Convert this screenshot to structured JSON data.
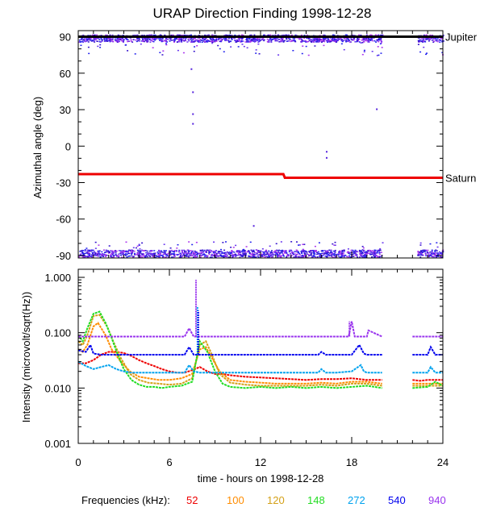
{
  "chart_data": [
    {
      "type": "scatter",
      "panel": "direction",
      "title": "URAP Direction Finding  1998-12-28",
      "xlabel": "",
      "ylabel": "Azimuthal angle (deg)",
      "xlim": [
        0,
        24
      ],
      "ylim": [
        -92,
        95
      ],
      "yticks": [
        90,
        60,
        30,
        0,
        -30,
        -60,
        -90
      ],
      "data_gap_hours": [
        20,
        22
      ],
      "reference_lines": [
        {
          "name": "Jupiter",
          "color": "#000000",
          "x": [
            0,
            24
          ],
          "y": [
            90,
            90
          ]
        },
        {
          "name": "Saturn",
          "color": "#ee0000",
          "x": [
            0,
            13.5,
            13.6,
            24
          ],
          "y": [
            -23,
            -23,
            -26,
            -26
          ]
        }
      ],
      "scatter_bands": [
        {
          "center": 89,
          "spread": 3,
          "outliers_low": 75
        },
        {
          "center": -88,
          "spread": 3,
          "outliers_high": -78
        }
      ],
      "isolated_points": [
        [
          7.4,
          64
        ],
        [
          7.5,
          45
        ],
        [
          7.5,
          27
        ],
        [
          7.5,
          19
        ],
        [
          16.3,
          -4
        ],
        [
          16.3,
          -9
        ],
        [
          19.6,
          31
        ],
        [
          11.5,
          -65
        ]
      ]
    },
    {
      "type": "line",
      "panel": "intensity",
      "xlabel": "time - hours on 1998-12-28",
      "ylabel": "Intensity (microvolt/sqrt(Hz))",
      "xlim": [
        0,
        24
      ],
      "ylim": [
        0.001,
        1.4
      ],
      "yscale": "log",
      "xticks": [
        0,
        6,
        12,
        18,
        24
      ],
      "yticks": [
        "0.001",
        "0.010",
        "0.100",
        "1.000"
      ],
      "ytick_values": [
        0.001,
        0.01,
        0.1,
        1
      ],
      "data_gap_hours": [
        20,
        22
      ],
      "legend_title": "Frequencies (kHz):",
      "series": [
        {
          "name": "52",
          "color": "#ee0000",
          "x": [
            0,
            0.5,
            1,
            1.5,
            2,
            2.5,
            3,
            3.5,
            4,
            4.5,
            5,
            5.5,
            6,
            6.5,
            7,
            7.5,
            8,
            8.5,
            9,
            9.5,
            10,
            11,
            12,
            13,
            14,
            15,
            16,
            17,
            18,
            19,
            20,
            22,
            22.5,
            23,
            24
          ],
          "y": [
            0.028,
            0.028,
            0.032,
            0.04,
            0.045,
            0.045,
            0.043,
            0.038,
            0.032,
            0.028,
            0.025,
            0.022,
            0.02,
            0.019,
            0.019,
            0.021,
            0.024,
            0.02,
            0.018,
            0.018,
            0.017,
            0.016,
            0.0155,
            0.015,
            0.0145,
            0.014,
            0.0145,
            0.0145,
            0.015,
            0.014,
            0.014,
            0.014,
            0.0135,
            0.014,
            0.014
          ]
        },
        {
          "name": "100",
          "color": "#ff8c00",
          "x": [
            0,
            0.3,
            0.6,
            1,
            1.3,
            1.8,
            2.2,
            2.8,
            3.4,
            4,
            4.6,
            5.3,
            6,
            6.8,
            7.5,
            8,
            8.4,
            8.8,
            9.3,
            10,
            11,
            12,
            13,
            14,
            15,
            16,
            17,
            18,
            19,
            20,
            22,
            23,
            24
          ],
          "y": [
            0.05,
            0.045,
            0.06,
            0.13,
            0.15,
            0.09,
            0.05,
            0.03,
            0.02,
            0.016,
            0.015,
            0.014,
            0.014,
            0.015,
            0.018,
            0.05,
            0.055,
            0.035,
            0.02,
            0.014,
            0.013,
            0.0125,
            0.012,
            0.012,
            0.012,
            0.0125,
            0.012,
            0.013,
            0.013,
            0.012,
            0.012,
            0.012,
            0.012
          ]
        },
        {
          "name": "120",
          "color": "#d4a017",
          "x": [
            0,
            0.3,
            0.6,
            1,
            1.4,
            1.9,
            2.3,
            2.8,
            3.4,
            4,
            4.6,
            5.3,
            6,
            6.8,
            7.5,
            8,
            8.4,
            8.8,
            9.3,
            10,
            11,
            12,
            13,
            14,
            15,
            16,
            17,
            18,
            19,
            20,
            22,
            23,
            24
          ],
          "y": [
            0.07,
            0.06,
            0.09,
            0.2,
            0.21,
            0.13,
            0.07,
            0.035,
            0.018,
            0.014,
            0.0125,
            0.012,
            0.0115,
            0.012,
            0.015,
            0.06,
            0.07,
            0.04,
            0.018,
            0.0125,
            0.0115,
            0.011,
            0.011,
            0.011,
            0.011,
            0.0115,
            0.011,
            0.012,
            0.012,
            0.011,
            0.011,
            0.011,
            0.011
          ]
        },
        {
          "name": "148",
          "color": "#22dd22",
          "x": [
            0,
            0.3,
            0.6,
            1,
            1.4,
            1.8,
            2.2,
            2.6,
            3,
            3.5,
            4,
            4.5,
            5,
            5.5,
            6,
            6.8,
            7.5,
            8,
            8.5,
            9,
            9.5,
            10,
            11,
            12,
            13,
            14,
            15,
            16,
            17,
            18,
            19,
            20,
            22,
            23,
            23.5,
            24
          ],
          "y": [
            0.09,
            0.07,
            0.12,
            0.22,
            0.24,
            0.15,
            0.08,
            0.04,
            0.022,
            0.014,
            0.0115,
            0.0105,
            0.0105,
            0.01,
            0.0105,
            0.011,
            0.013,
            0.07,
            0.045,
            0.02,
            0.012,
            0.0105,
            0.01,
            0.0105,
            0.01,
            0.0105,
            0.01,
            0.0105,
            0.01,
            0.0105,
            0.011,
            0.01,
            0.01,
            0.0105,
            0.013,
            0.011
          ]
        },
        {
          "name": "272",
          "color": "#00a2ee",
          "x": [
            0,
            0.5,
            1,
            1.5,
            2,
            2.5,
            3,
            3.5,
            4,
            5,
            6,
            7,
            7.3,
            7.6,
            8,
            9,
            10,
            12,
            14,
            15.8,
            16,
            16.3,
            17,
            18,
            18.6,
            18.8,
            19,
            20,
            22,
            23,
            23.2,
            23.5,
            24
          ],
          "y": [
            0.03,
            0.025,
            0.022,
            0.024,
            0.026,
            0.022,
            0.02,
            0.019,
            0.019,
            0.019,
            0.019,
            0.019,
            0.026,
            0.02,
            0.019,
            0.019,
            0.019,
            0.019,
            0.019,
            0.019,
            0.022,
            0.019,
            0.019,
            0.02,
            0.026,
            0.02,
            0.019,
            0.019,
            0.019,
            0.019,
            0.024,
            0.019,
            0.019
          ]
        },
        {
          "name": "540",
          "color": "#0000ee",
          "x": [
            0,
            0.5,
            0.8,
            1,
            1.5,
            2,
            3,
            4,
            6,
            7,
            7.3,
            7.6,
            8,
            10,
            12,
            14,
            15.8,
            16,
            16.3,
            17,
            18,
            18.5,
            18.8,
            19,
            20,
            22,
            23,
            23.2,
            23.5,
            24
          ],
          "y": [
            0.048,
            0.045,
            0.06,
            0.042,
            0.04,
            0.04,
            0.04,
            0.04,
            0.04,
            0.04,
            0.055,
            0.04,
            0.04,
            0.04,
            0.04,
            0.04,
            0.04,
            0.045,
            0.04,
            0.04,
            0.04,
            0.06,
            0.042,
            0.04,
            0.04,
            0.04,
            0.04,
            0.055,
            0.04,
            0.04
          ]
        },
        {
          "name": "940",
          "color": "#9933ee",
          "x": [
            0,
            1,
            2,
            3,
            4,
            5,
            6,
            7,
            7.3,
            7.6,
            8,
            9,
            10,
            12,
            14,
            16,
            17,
            17.8,
            18,
            18.2,
            19,
            19.1,
            20,
            22,
            23,
            24
          ],
          "y": [
            0.085,
            0.085,
            0.085,
            0.085,
            0.085,
            0.085,
            0.085,
            0.085,
            0.12,
            0.085,
            0.085,
            0.085,
            0.085,
            0.085,
            0.085,
            0.085,
            0.085,
            0.085,
            0.16,
            0.085,
            0.085,
            0.11,
            0.085,
            0.085,
            0.085,
            0.085
          ]
        }
      ],
      "spikes": [
        {
          "color": "#9933ee",
          "x": 7.75,
          "y": [
            0.085,
            0.9
          ]
        },
        {
          "color": "#00a2ee",
          "x": 7.85,
          "y": [
            0.04,
            0.3
          ]
        },
        {
          "color": "#0000ee",
          "x": 7.9,
          "y": [
            0.04,
            0.25
          ]
        },
        {
          "color": "#9933ee",
          "x": 17.85,
          "y": [
            0.085,
            0.16
          ]
        }
      ]
    }
  ]
}
